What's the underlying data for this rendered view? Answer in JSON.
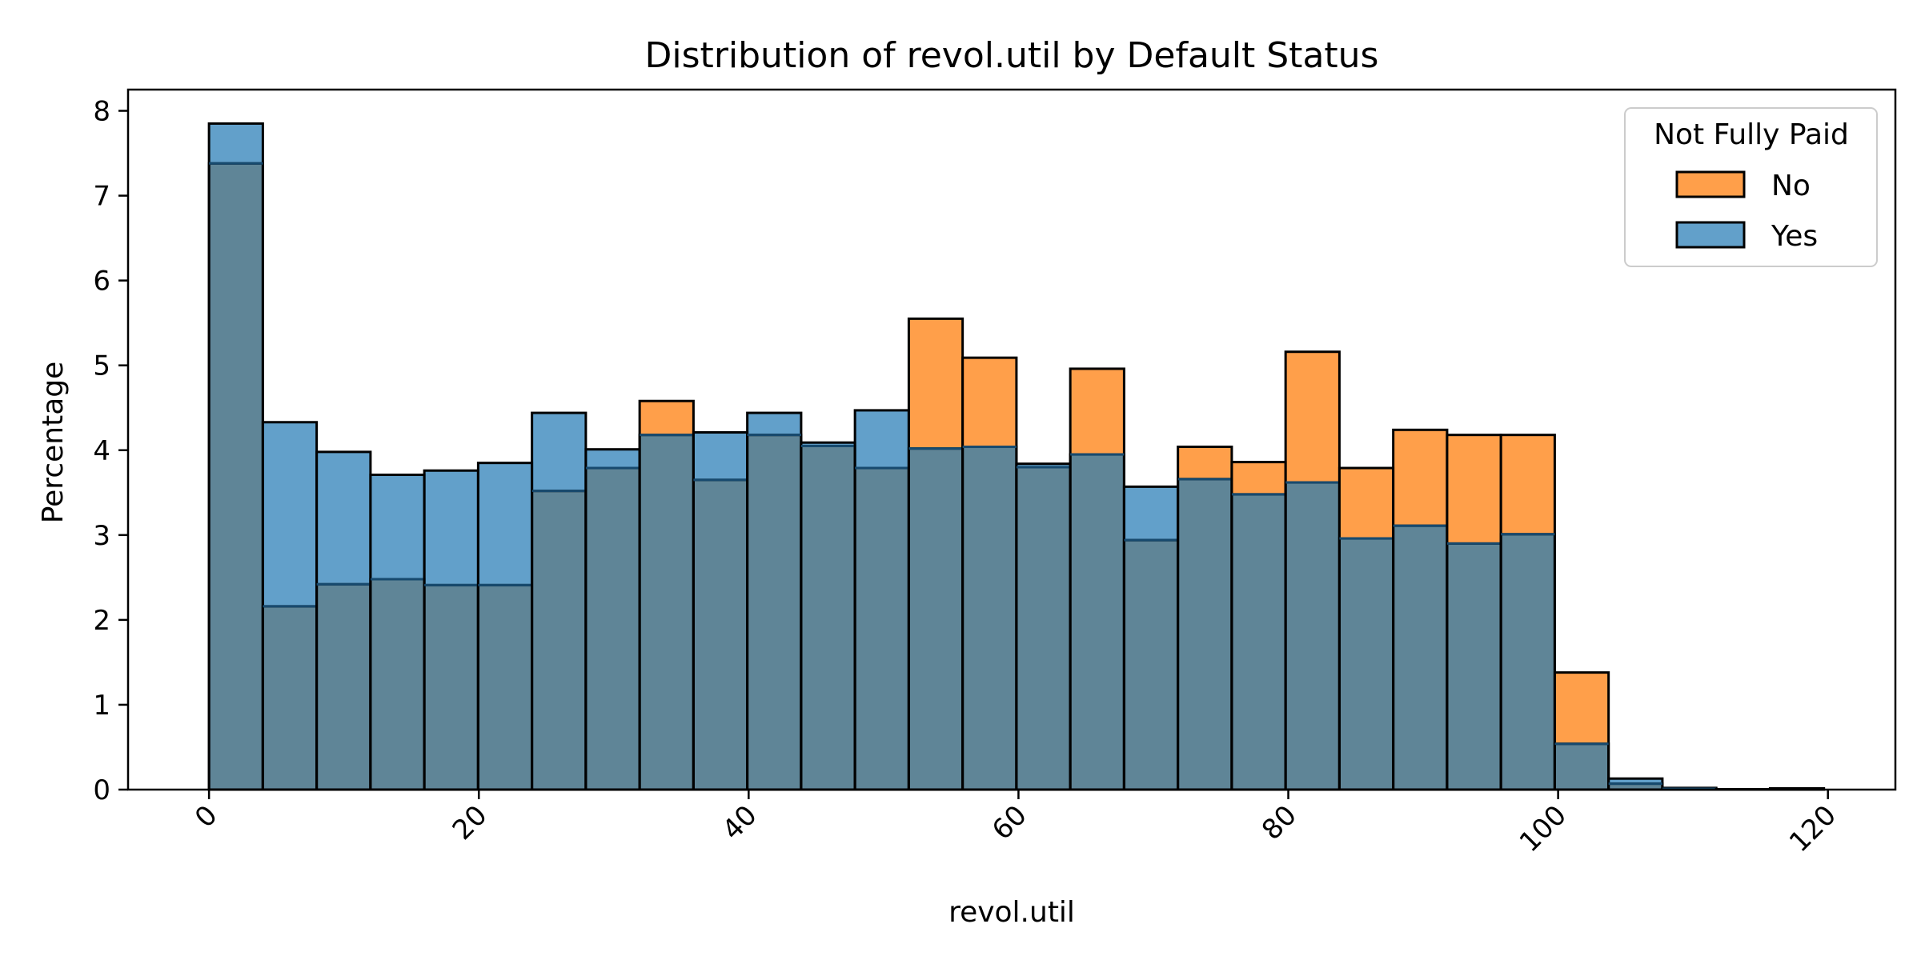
{
  "chart_data": {
    "type": "bar",
    "subtype": "overlaid histogram",
    "title": "Distribution of revol.util by Default Status",
    "xlabel": "revol.util",
    "ylabel": "Percentage",
    "xlim": [
      -6,
      125
    ],
    "ylim": [
      0,
      8.25
    ],
    "xticks": [
      0,
      20,
      40,
      60,
      80,
      100,
      120
    ],
    "yticks": [
      0,
      1,
      2,
      3,
      4,
      5,
      6,
      7,
      8
    ],
    "grid": false,
    "legend": {
      "title": "Not Fully Paid",
      "placement": "top-right"
    },
    "bin_width": 3.99,
    "bin_edges_start": 0,
    "colors": {
      "No": "#ff7f0e",
      "Yes": "#1f77b4",
      "overlap": "#5f8597"
    },
    "series": [
      {
        "name": "No",
        "color": "#ff7f0e",
        "values": [
          7.38,
          2.16,
          2.42,
          2.48,
          2.41,
          2.41,
          3.52,
          3.79,
          4.58,
          3.65,
          4.18,
          4.05,
          3.79,
          5.55,
          5.09,
          3.8,
          4.96,
          2.94,
          4.04,
          3.86,
          5.16,
          3.79,
          4.24,
          4.18,
          4.18,
          1.38,
          0.07,
          0.02,
          0.005,
          0.015
        ]
      },
      {
        "name": "Yes",
        "color": "#1f77b4",
        "values": [
          7.85,
          4.33,
          3.98,
          3.71,
          3.76,
          3.85,
          4.44,
          4.01,
          4.18,
          4.21,
          4.44,
          4.09,
          4.47,
          4.02,
          4.04,
          3.84,
          3.95,
          3.57,
          3.66,
          3.48,
          3.62,
          2.96,
          3.11,
          2.9,
          3.01,
          0.54,
          0.13,
          0.01,
          0.0,
          0.0
        ]
      }
    ]
  }
}
